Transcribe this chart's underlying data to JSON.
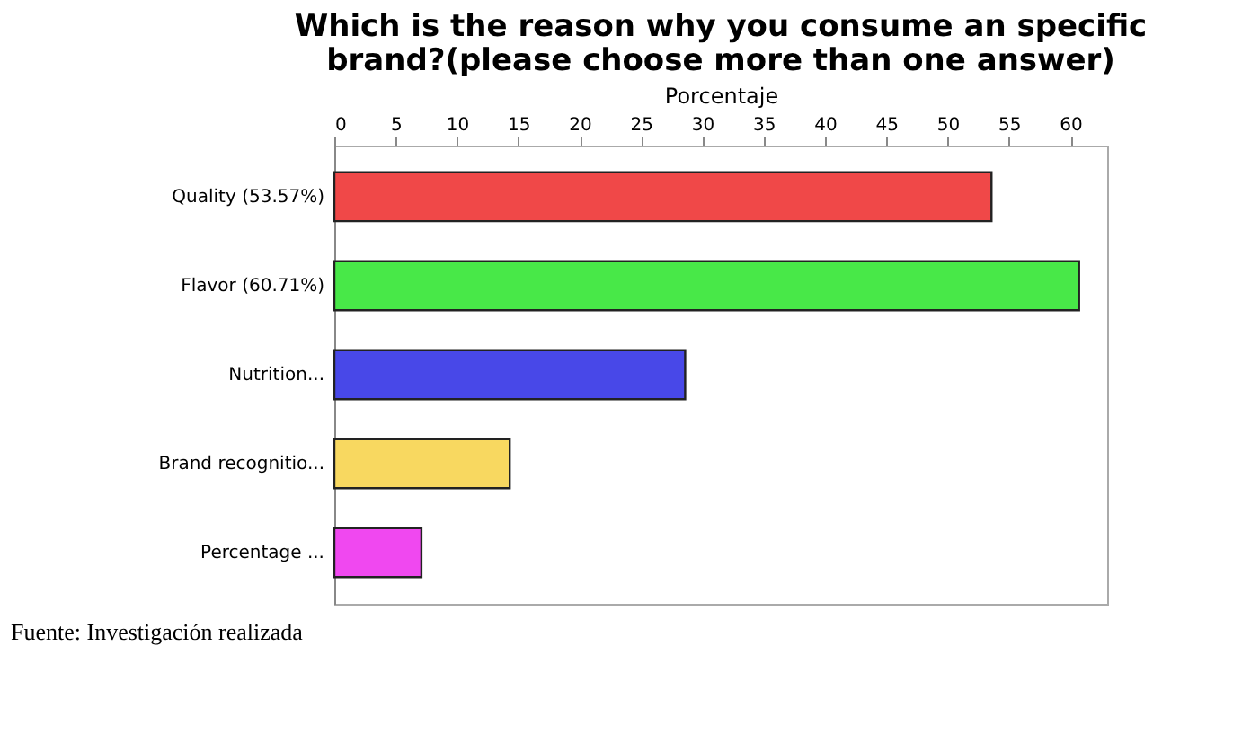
{
  "chart_data": {
    "type": "bar",
    "orientation": "horizontal",
    "title": [
      "Which is the reason why you consume an specific",
      "brand?(please choose more than one answer)"
    ],
    "xlabel": "Porcentaje",
    "categories": [
      "Quality  (53.57%)",
      "Flavor (60.71%)",
      "Nutrition...",
      "Brand recognitio...",
      "Percentage ..."
    ],
    "values": [
      53.57,
      60.71,
      28.6,
      14.3,
      7.1
    ],
    "colors": [
      "#f04848",
      "#48e848",
      "#4848e8",
      "#f8d860",
      "#f048f0"
    ],
    "xlim": [
      0,
      63
    ],
    "xticks": [
      0,
      5,
      10,
      15,
      20,
      25,
      30,
      35,
      40,
      45,
      50,
      55,
      60
    ],
    "grid": false,
    "annotations": [
      "Fuente: Investigación realizada"
    ]
  }
}
